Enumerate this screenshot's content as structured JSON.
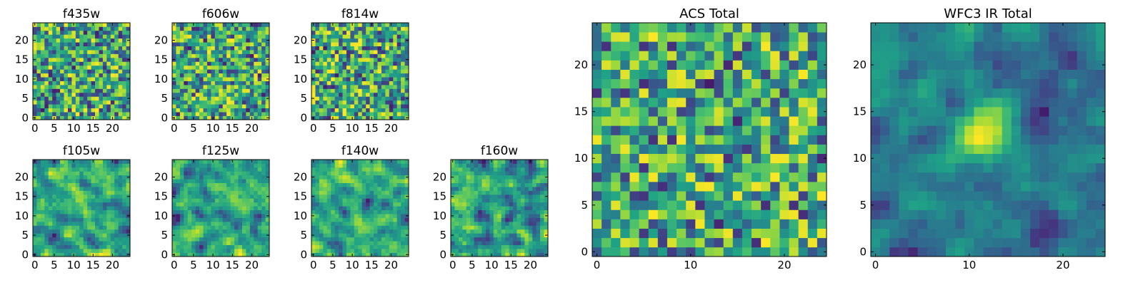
{
  "colormap": "viridis",
  "colormap_stops": [
    "#440154",
    "#46327e",
    "#365c8d",
    "#277f8e",
    "#1fa187",
    "#4ac16d",
    "#a0da39",
    "#fde725"
  ],
  "chart_data": [
    {
      "type": "heatmap",
      "title": "f435w",
      "grid_size": 25,
      "seed": 435,
      "smooth": 0,
      "hot_spots": [],
      "xlim": [
        -0.5,
        24.5
      ],
      "ylim": [
        -0.5,
        24.5
      ],
      "xticks": [
        0,
        5,
        10,
        15,
        20
      ],
      "yticks": [
        0,
        5,
        10,
        15,
        20
      ]
    },
    {
      "type": "heatmap",
      "title": "f606w",
      "grid_size": 25,
      "seed": 606,
      "smooth": 0,
      "hot_spots": [],
      "xlim": [
        -0.5,
        24.5
      ],
      "ylim": [
        -0.5,
        24.5
      ],
      "xticks": [
        0,
        5,
        10,
        15,
        20
      ],
      "yticks": [
        0,
        5,
        10,
        15,
        20
      ]
    },
    {
      "type": "heatmap",
      "title": "f814w",
      "grid_size": 25,
      "seed": 814,
      "smooth": 0,
      "hot_spots": [],
      "xlim": [
        -0.5,
        24.5
      ],
      "ylim": [
        -0.5,
        24.5
      ],
      "xticks": [
        0,
        5,
        10,
        15,
        20
      ],
      "yticks": [
        0,
        5,
        10,
        15,
        20
      ]
    },
    {
      "type": "heatmap",
      "title": "f105w",
      "grid_size": 25,
      "seed": 105,
      "smooth": 1,
      "hot_spots": [],
      "xlim": [
        -0.5,
        24.5
      ],
      "ylim": [
        -0.5,
        24.5
      ],
      "xticks": [
        0,
        5,
        10,
        15,
        20
      ],
      "yticks": [
        0,
        5,
        10,
        15,
        20
      ]
    },
    {
      "type": "heatmap",
      "title": "f125w",
      "grid_size": 25,
      "seed": 125,
      "smooth": 1,
      "hot_spots": [],
      "xlim": [
        -0.5,
        24.5
      ],
      "ylim": [
        -0.5,
        24.5
      ],
      "xticks": [
        0,
        5,
        10,
        15,
        20
      ],
      "yticks": [
        0,
        5,
        10,
        15,
        20
      ]
    },
    {
      "type": "heatmap",
      "title": "f140w",
      "grid_size": 25,
      "seed": 140,
      "smooth": 1,
      "hot_spots": [],
      "xlim": [
        -0.5,
        24.5
      ],
      "ylim": [
        -0.5,
        24.5
      ],
      "xticks": [
        0,
        5,
        10,
        15,
        20
      ],
      "yticks": [
        0,
        5,
        10,
        15,
        20
      ]
    },
    {
      "type": "heatmap",
      "title": "f160w",
      "grid_size": 25,
      "seed": 160,
      "smooth": 1,
      "hot_spots": [],
      "xlim": [
        -0.5,
        24.5
      ],
      "ylim": [
        -0.5,
        24.5
      ],
      "xticks": [
        0,
        5,
        10,
        15,
        20
      ],
      "yticks": [
        0,
        5,
        10,
        15,
        20
      ]
    },
    {
      "type": "heatmap",
      "title": "ACS Total",
      "grid_size": 25,
      "seed": 2001,
      "smooth": 0,
      "hot_spots": [],
      "xlim": [
        -0.5,
        24.5
      ],
      "ylim": [
        -0.5,
        24.5
      ],
      "xticks": [
        0,
        10,
        20
      ],
      "yticks": [
        0,
        5,
        10,
        15,
        20
      ]
    },
    {
      "type": "heatmap",
      "title": "WFC3 IR Total",
      "grid_size": 25,
      "seed": 3001,
      "smooth": 1,
      "hot_spots": [
        {
          "x": 11.5,
          "y": 13,
          "amp": 1.0,
          "sigma": 2.0
        }
      ],
      "xlim": [
        -0.5,
        24.5
      ],
      "ylim": [
        -0.5,
        24.5
      ],
      "xticks": [
        0,
        10,
        20
      ],
      "yticks": [
        0,
        5,
        10,
        15,
        20
      ]
    }
  ]
}
